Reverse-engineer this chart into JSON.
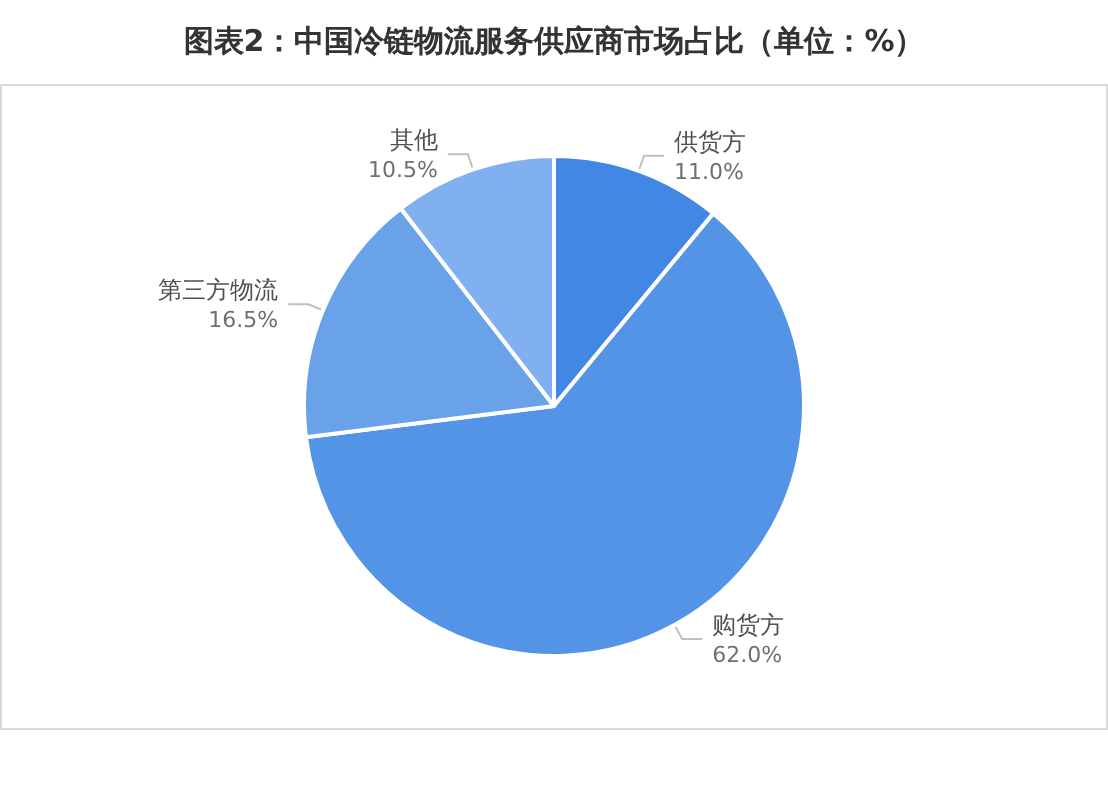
{
  "chart_data": {
    "type": "pie",
    "title": "图表2：中国冷链物流服务供应商市场占比（单位：%）",
    "categories": [
      "供货方",
      "购货方",
      "第三方物流",
      "其他"
    ],
    "values": [
      11.0,
      62.0,
      16.5,
      10.5
    ],
    "value_labels": [
      "11.0%",
      "62.0%",
      "16.5%",
      "10.5%"
    ],
    "colors": [
      "#4187e3",
      "#5494e6",
      "#6aa2ea",
      "#80b0f0"
    ]
  }
}
